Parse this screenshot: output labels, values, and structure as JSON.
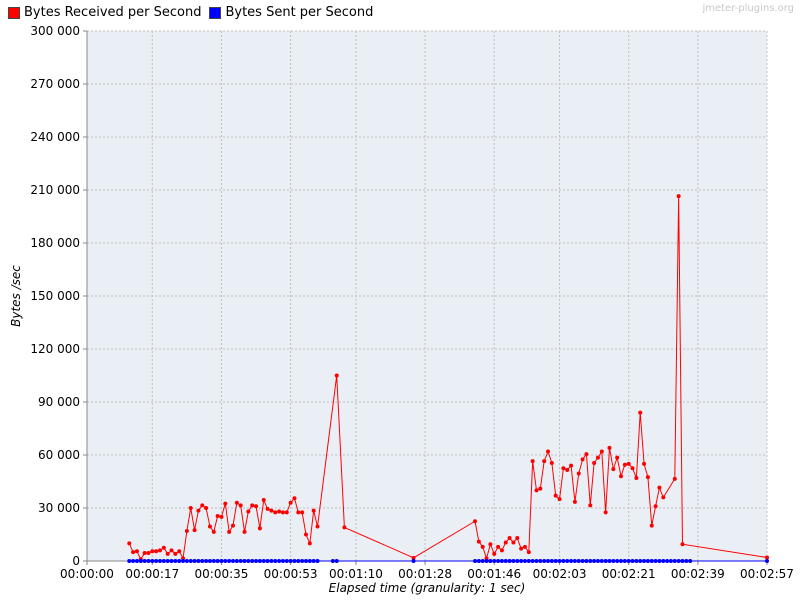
{
  "watermark": "jmeter-plugins.org",
  "colors": {
    "plot_background": "#eaeff6",
    "grid": "#c0c0c0",
    "received": "#ff0000",
    "sent": "#0000ff"
  },
  "chart_data": {
    "type": "line",
    "xlabel": "Elapsed time (granularity: 1 sec)",
    "ylabel": "Bytes /sec",
    "xlim": [
      0,
      177
    ],
    "ylim": [
      0,
      300000
    ],
    "x_ticks": [
      {
        "v": 0,
        "label": "00:00:00"
      },
      {
        "v": 17,
        "label": "00:00:17"
      },
      {
        "v": 35,
        "label": "00:00:35"
      },
      {
        "v": 53,
        "label": "00:00:53"
      },
      {
        "v": 70,
        "label": "00:01:10"
      },
      {
        "v": 88,
        "label": "00:01:28"
      },
      {
        "v": 106,
        "label": "00:01:46"
      },
      {
        "v": 123,
        "label": "00:02:03"
      },
      {
        "v": 141,
        "label": "00:02:21"
      },
      {
        "v": 159,
        "label": "00:02:39"
      },
      {
        "v": 177,
        "label": "00:02:57"
      }
    ],
    "y_ticks": [
      {
        "v": 0,
        "label": "0"
      },
      {
        "v": 30000,
        "label": "30 000"
      },
      {
        "v": 60000,
        "label": "60 000"
      },
      {
        "v": 90000,
        "label": "90 000"
      },
      {
        "v": 120000,
        "label": "120 000"
      },
      {
        "v": 150000,
        "label": "150 000"
      },
      {
        "v": 180000,
        "label": "180 000"
      },
      {
        "v": 210000,
        "label": "210 000"
      },
      {
        "v": 240000,
        "label": "240 000"
      },
      {
        "v": 270000,
        "label": "270 000"
      },
      {
        "v": 300000,
        "label": "300 000"
      }
    ],
    "grid": true,
    "legend_position": "top-left",
    "series": [
      {
        "name": "Bytes Received per Second",
        "color": "#ff0000",
        "points": [
          [
            11,
            10000
          ],
          [
            12,
            5000
          ],
          [
            13,
            5500
          ],
          [
            14,
            1000
          ],
          [
            15,
            4500
          ],
          [
            16,
            4500
          ],
          [
            17,
            5500
          ],
          [
            18,
            5500
          ],
          [
            19,
            6000
          ],
          [
            20,
            7500
          ],
          [
            21,
            4000
          ],
          [
            22,
            6000
          ],
          [
            23,
            4000
          ],
          [
            24,
            5500
          ],
          [
            25,
            1500
          ],
          [
            26,
            17000
          ],
          [
            27,
            30000
          ],
          [
            28,
            17500
          ],
          [
            29,
            28500
          ],
          [
            30,
            31500
          ],
          [
            31,
            30000
          ],
          [
            32,
            19500
          ],
          [
            33,
            16500
          ],
          [
            34,
            25500
          ],
          [
            35,
            25000
          ],
          [
            36,
            32500
          ],
          [
            37,
            16500
          ],
          [
            38,
            20000
          ],
          [
            39,
            33000
          ],
          [
            40,
            31500
          ],
          [
            41,
            16500
          ],
          [
            42,
            28000
          ],
          [
            43,
            31500
          ],
          [
            44,
            31000
          ],
          [
            45,
            18500
          ],
          [
            46,
            34500
          ],
          [
            47,
            29500
          ],
          [
            48,
            28500
          ],
          [
            49,
            27500
          ],
          [
            50,
            28000
          ],
          [
            51,
            27500
          ],
          [
            52,
            27500
          ],
          [
            53,
            33000
          ],
          [
            54,
            35500
          ],
          [
            55,
            27500
          ],
          [
            56,
            27500
          ],
          [
            57,
            15000
          ],
          [
            58,
            10000
          ],
          [
            59,
            28500
          ],
          [
            60,
            19500
          ],
          [
            65,
            105000
          ],
          [
            67,
            19000
          ],
          [
            85,
            1800
          ],
          [
            101,
            22500
          ],
          [
            102,
            11000
          ],
          [
            103,
            8000
          ],
          [
            104,
            1500
          ],
          [
            105,
            9500
          ],
          [
            106,
            4000
          ],
          [
            107,
            8000
          ],
          [
            108,
            6000
          ],
          [
            109,
            10500
          ],
          [
            110,
            13000
          ],
          [
            111,
            10500
          ],
          [
            112,
            13000
          ],
          [
            113,
            7000
          ],
          [
            114,
            8000
          ],
          [
            115,
            5000
          ],
          [
            116,
            56500
          ],
          [
            117,
            40000
          ],
          [
            118,
            41000
          ],
          [
            119,
            56500
          ],
          [
            120,
            62000
          ],
          [
            121,
            55500
          ],
          [
            122,
            37000
          ],
          [
            123,
            35000
          ],
          [
            124,
            52500
          ],
          [
            125,
            51500
          ],
          [
            126,
            54000
          ],
          [
            127,
            33500
          ],
          [
            128,
            49500
          ],
          [
            129,
            57500
          ],
          [
            130,
            60500
          ],
          [
            131,
            31500
          ],
          [
            132,
            55500
          ],
          [
            133,
            58500
          ],
          [
            134,
            62000
          ],
          [
            135,
            27500
          ],
          [
            136,
            64000
          ],
          [
            137,
            52000
          ],
          [
            138,
            58500
          ],
          [
            139,
            48000
          ],
          [
            140,
            54500
          ],
          [
            141,
            55000
          ],
          [
            142,
            52500
          ],
          [
            143,
            47000
          ],
          [
            144,
            84000
          ],
          [
            145,
            55000
          ],
          [
            146,
            47500
          ],
          [
            147,
            20000
          ],
          [
            148,
            31000
          ],
          [
            149,
            41500
          ],
          [
            150,
            36000
          ],
          [
            153,
            46500
          ],
          [
            154,
            206500
          ],
          [
            155,
            9500
          ],
          [
            177,
            2000
          ]
        ]
      },
      {
        "name": "Bytes Sent per Second",
        "color": "#0000ff",
        "range_segments": [
          [
            11,
            60
          ],
          [
            64,
            65
          ],
          [
            101,
            154
          ],
          [
            155,
            157
          ]
        ],
        "extra_points": [
          [
            85,
            0
          ],
          [
            177,
            0
          ]
        ],
        "value": 0
      }
    ]
  }
}
